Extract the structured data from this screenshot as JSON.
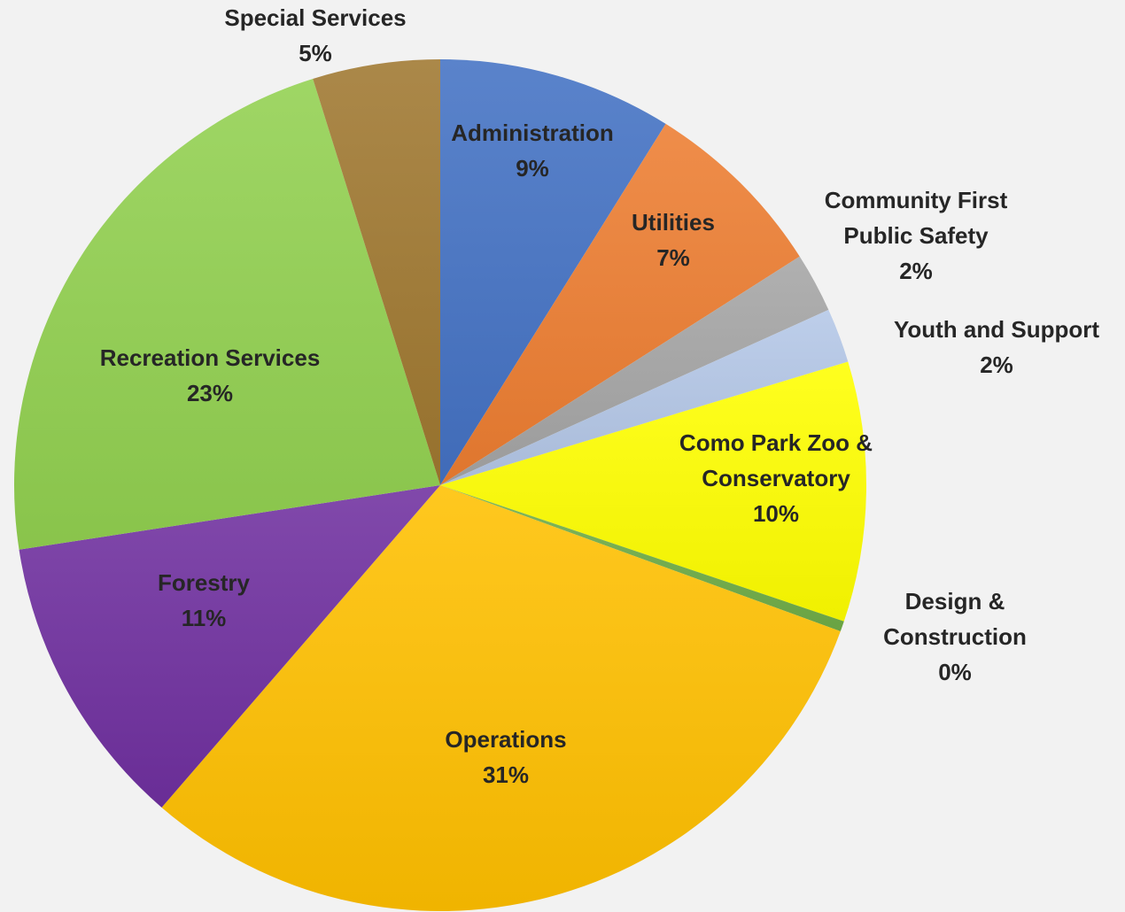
{
  "chart_data": {
    "type": "pie",
    "title": "",
    "start_angle_deg": 0,
    "direction": "clockwise",
    "legend": "none",
    "slices": [
      {
        "label": [
          "Administration"
        ],
        "pct_text": "9%",
        "value": 9.0,
        "color": "#4472c4"
      },
      {
        "label": [
          "Utilities"
        ],
        "pct_text": "7%",
        "value": 7.2,
        "color": "#ed7d31"
      },
      {
        "label": [
          "Community First",
          "Public Safety"
        ],
        "pct_text": "2%",
        "value": 2.3,
        "color": "#a5a5a5"
      },
      {
        "label": [
          "Youth and Support"
        ],
        "pct_text": "2%",
        "value": 2.1,
        "color": "#b4c7e7"
      },
      {
        "label": [
          "Como Park Zoo &",
          "Conservatory"
        ],
        "pct_text": "10%",
        "value": 10.0,
        "color": "#ffff00"
      },
      {
        "label": [
          "Design &",
          "Construction"
        ],
        "pct_text": "0%",
        "value": 0.4,
        "color": "#70ad47"
      },
      {
        "label": [
          "Operations"
        ],
        "pct_text": "31%",
        "value": 31.2,
        "color": "#ffc000"
      },
      {
        "label": [
          "Forestry"
        ],
        "pct_text": "11%",
        "value": 11.4,
        "color": "#7030a0"
      },
      {
        "label": [
          "Recreation Services"
        ],
        "pct_text": "23%",
        "value": 22.9,
        "color": "#92d050"
      },
      {
        "label": [
          "Special Services"
        ],
        "pct_text": "5%",
        "value": 4.9,
        "color": "#a07830"
      }
    ]
  }
}
